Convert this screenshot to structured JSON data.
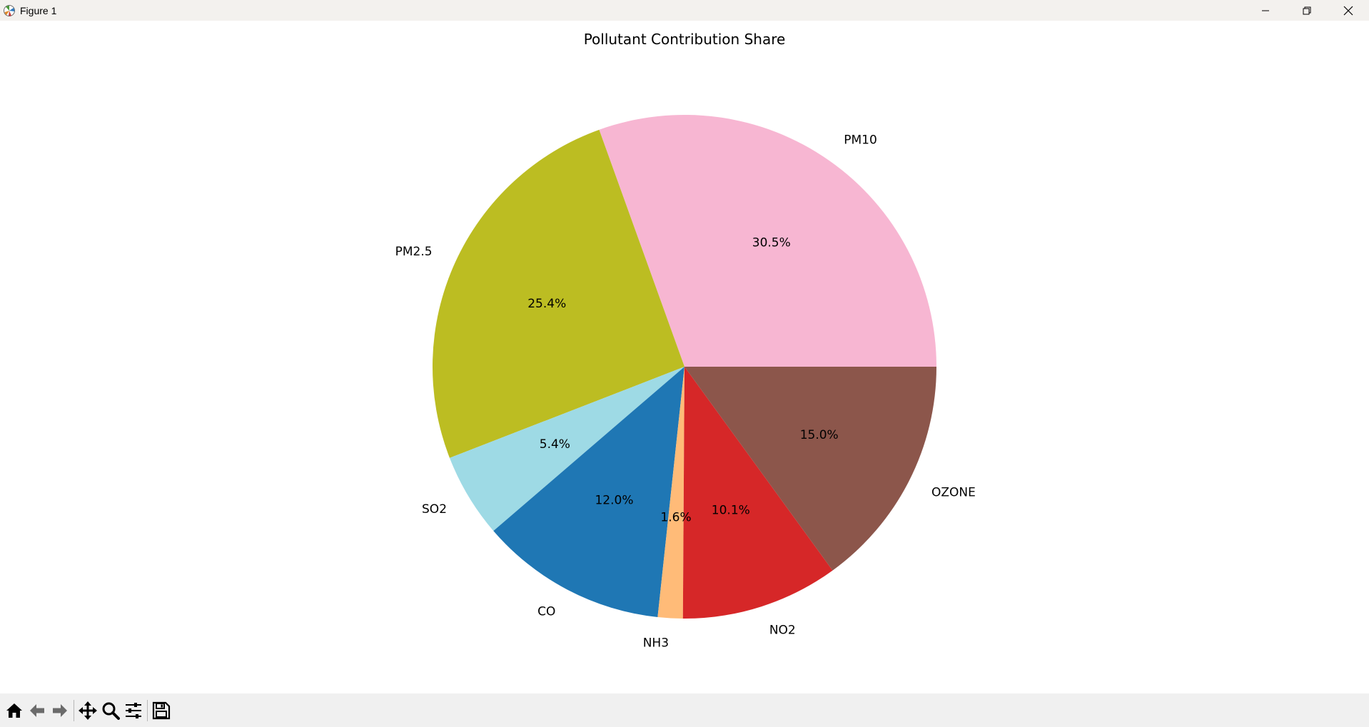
{
  "window": {
    "title": "Figure 1"
  },
  "toolbar": {
    "items": [
      {
        "icon": "home-icon"
      },
      {
        "icon": "back-arrow-icon"
      },
      {
        "icon": "forward-arrow-icon"
      },
      {
        "icon": "pan-icon"
      },
      {
        "icon": "zoom-icon"
      },
      {
        "icon": "configure-subplots-icon"
      },
      {
        "icon": "save-icon"
      }
    ]
  },
  "chart_data": {
    "type": "pie",
    "title": "Pollutant Contribution Share",
    "start_angle_deg": 0,
    "counterclockwise": true,
    "slices": [
      {
        "label": "PM10",
        "value": 30.5,
        "pct_label": "30.5%",
        "color": "#f7b6d2"
      },
      {
        "label": "PM2.5",
        "value": 25.4,
        "pct_label": "25.4%",
        "color": "#bcbd22"
      },
      {
        "label": "SO2",
        "value": 5.4,
        "pct_label": "5.4%",
        "color": "#9edae5"
      },
      {
        "label": "CO",
        "value": 12.0,
        "pct_label": "12.0%",
        "color": "#1f77b4"
      },
      {
        "label": "NH3",
        "value": 1.6,
        "pct_label": "1.6%",
        "color": "#ffbb78"
      },
      {
        "label": "NO2",
        "value": 10.1,
        "pct_label": "10.1%",
        "color": "#d62728"
      },
      {
        "label": "OZONE",
        "value": 15.0,
        "pct_label": "15.0%",
        "color": "#8c564b"
      }
    ]
  }
}
